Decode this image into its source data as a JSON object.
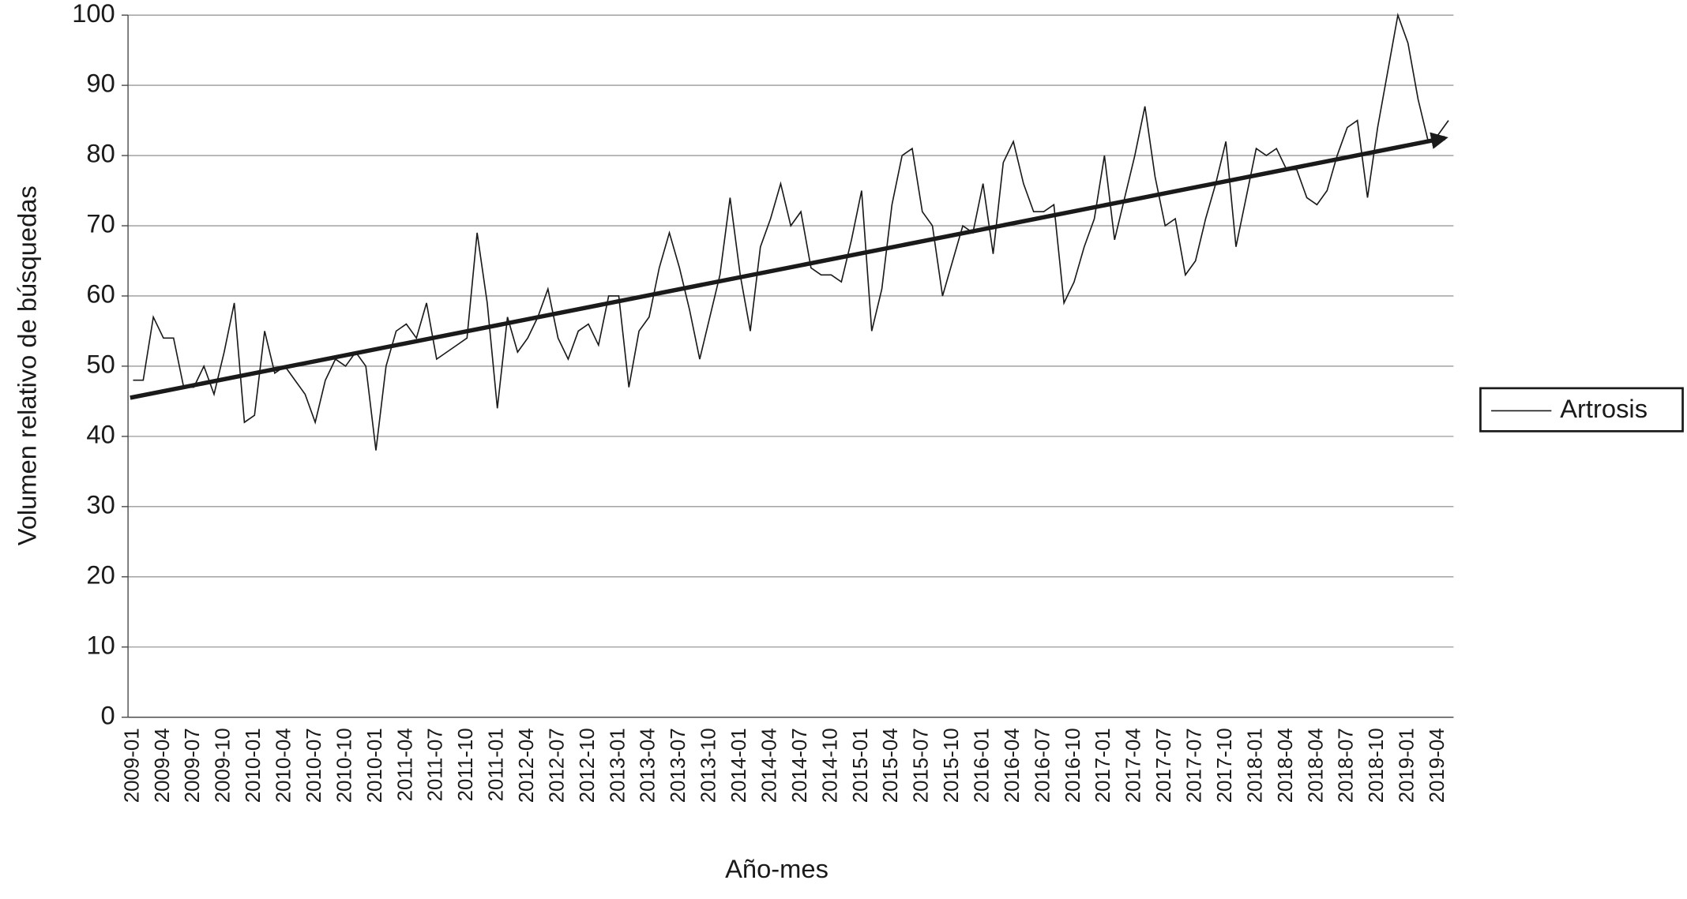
{
  "chart_data": {
    "type": "line",
    "y_label": "Volumen relativo de búsquedas",
    "x_label": "Año-mes",
    "categories": [
      "2009-01",
      null,
      null,
      "2009-04",
      null,
      null,
      "2009-07",
      null,
      null,
      "2009-10",
      null,
      null,
      "2010-01",
      null,
      null,
      "2010-04",
      null,
      null,
      "2010-07",
      null,
      null,
      "2010-10",
      null,
      null,
      "2010-01",
      null,
      null,
      "2011-04",
      null,
      null,
      "2011-07",
      null,
      null,
      "2011-10",
      null,
      null,
      "2011-01",
      null,
      null,
      "2012-04",
      null,
      null,
      "2012-07",
      null,
      null,
      "2012-10",
      null,
      null,
      "2013-01",
      null,
      null,
      "2013-04",
      null,
      null,
      "2013-07",
      null,
      null,
      "2013-10",
      null,
      null,
      "2014-01",
      null,
      null,
      "2014-04",
      null,
      null,
      "2014-07",
      null,
      null,
      "2014-10",
      null,
      null,
      "2015-01",
      null,
      null,
      "2015-04",
      null,
      null,
      "2015-07",
      null,
      null,
      "2015-10",
      null,
      null,
      "2016-01",
      null,
      null,
      "2016-04",
      null,
      null,
      "2016-07",
      null,
      null,
      "2016-10",
      null,
      null,
      "2017-01",
      null,
      null,
      "2017-04",
      null,
      null,
      "2017-07",
      null,
      null,
      "2017-07",
      null,
      null,
      "2017-10",
      null,
      null,
      "2018-01",
      null,
      null,
      "2018-04",
      null,
      null,
      "2018-04",
      null,
      null,
      "2018-07",
      null,
      null,
      "2018-10",
      null,
      null,
      "2019-01",
      null,
      null,
      "2019-04",
      null
    ],
    "series": [
      {
        "name": "Artrosis",
        "color": "#1a1a1a",
        "values": [
          48,
          48,
          57,
          54,
          54,
          47,
          47,
          50,
          46,
          52,
          59,
          42,
          43,
          55,
          49,
          50,
          48,
          46,
          42,
          48,
          51,
          50,
          52,
          50,
          38,
          50,
          55,
          56,
          54,
          59,
          51,
          52,
          53,
          54,
          69,
          59,
          44,
          57,
          52,
          54,
          57,
          61,
          54,
          51,
          55,
          56,
          53,
          60,
          60,
          47,
          55,
          57,
          64,
          69,
          64,
          58,
          51,
          57,
          63,
          74,
          63,
          55,
          67,
          71,
          76,
          70,
          72,
          64,
          63,
          63,
          62,
          68,
          75,
          55,
          61,
          73,
          80,
          81,
          72,
          70,
          60,
          65,
          70,
          69,
          76,
          66,
          79,
          82,
          76,
          72,
          72,
          73,
          59,
          62,
          67,
          71,
          80,
          68,
          74,
          80,
          87,
          77,
          70,
          71,
          63,
          65,
          71,
          76,
          82,
          67,
          74,
          81,
          80,
          81,
          78,
          78,
          74,
          73,
          75,
          80,
          84,
          85,
          74,
          84,
          92,
          100,
          96,
          88,
          82,
          83,
          85
        ]
      }
    ],
    "trendline": {
      "color": "#1a1a1a",
      "values": [
        45.5,
        82.5
      ]
    },
    "ylim": [
      0,
      100
    ],
    "yticks": [
      0,
      10,
      20,
      30,
      40,
      50,
      60,
      70,
      80,
      90,
      100
    ],
    "grid": true,
    "legend": "right"
  }
}
